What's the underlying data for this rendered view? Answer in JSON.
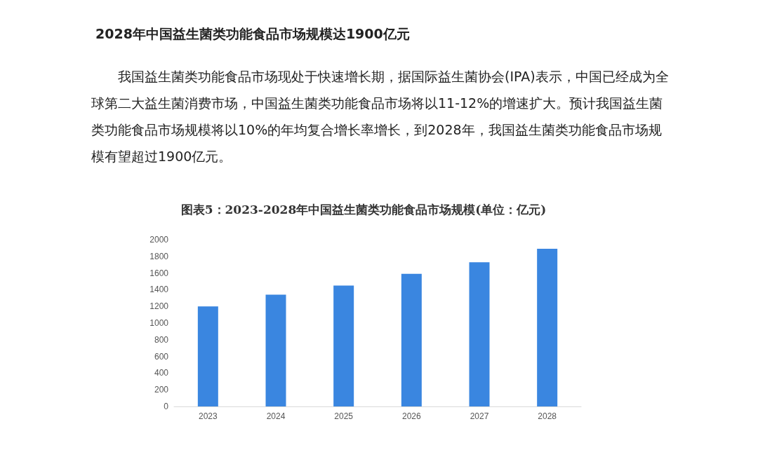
{
  "chart_data": {
    "type": "bar",
    "title": "图表5：2023-2028年中国益生菌类功能食品市场规模(单位：亿元)",
    "annotations": [
      "2028年中国益生菌类功能食品市场规模达1900亿元",
      "我国益生菌类功能食品市场现处于快速增长期，据国际益生菌协会(IPA)表示，中国已经成为全球第二大益生菌消费市场，中国益生菌类功能食品市场将以11-12%的增速扩大。预计我国益生菌类功能食品市场规模将以10%的年均复合增长率增长，到2028年，我国益生菌类功能食品市场规模有望超过1900亿元。"
    ],
    "categories": [
      "2023",
      "2024",
      "2025",
      "2026",
      "2027",
      "2028"
    ],
    "values": [
      1200,
      1340,
      1450,
      1590,
      1730,
      1890
    ],
    "color": "#3a86e0",
    "ylim": [
      0,
      2000
    ],
    "yticks": [
      0,
      200,
      400,
      600,
      800,
      1000,
      1200,
      1400,
      1600,
      1800,
      2000
    ],
    "grid": false
  }
}
